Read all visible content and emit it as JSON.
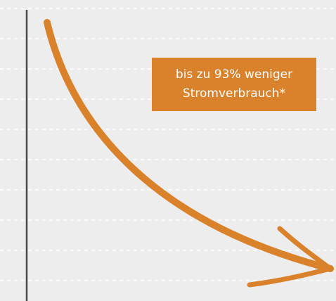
{
  "label": {
    "lines": [
      "bis zu 93% weniger",
      "Stromverbrauch*"
    ]
  }
}
